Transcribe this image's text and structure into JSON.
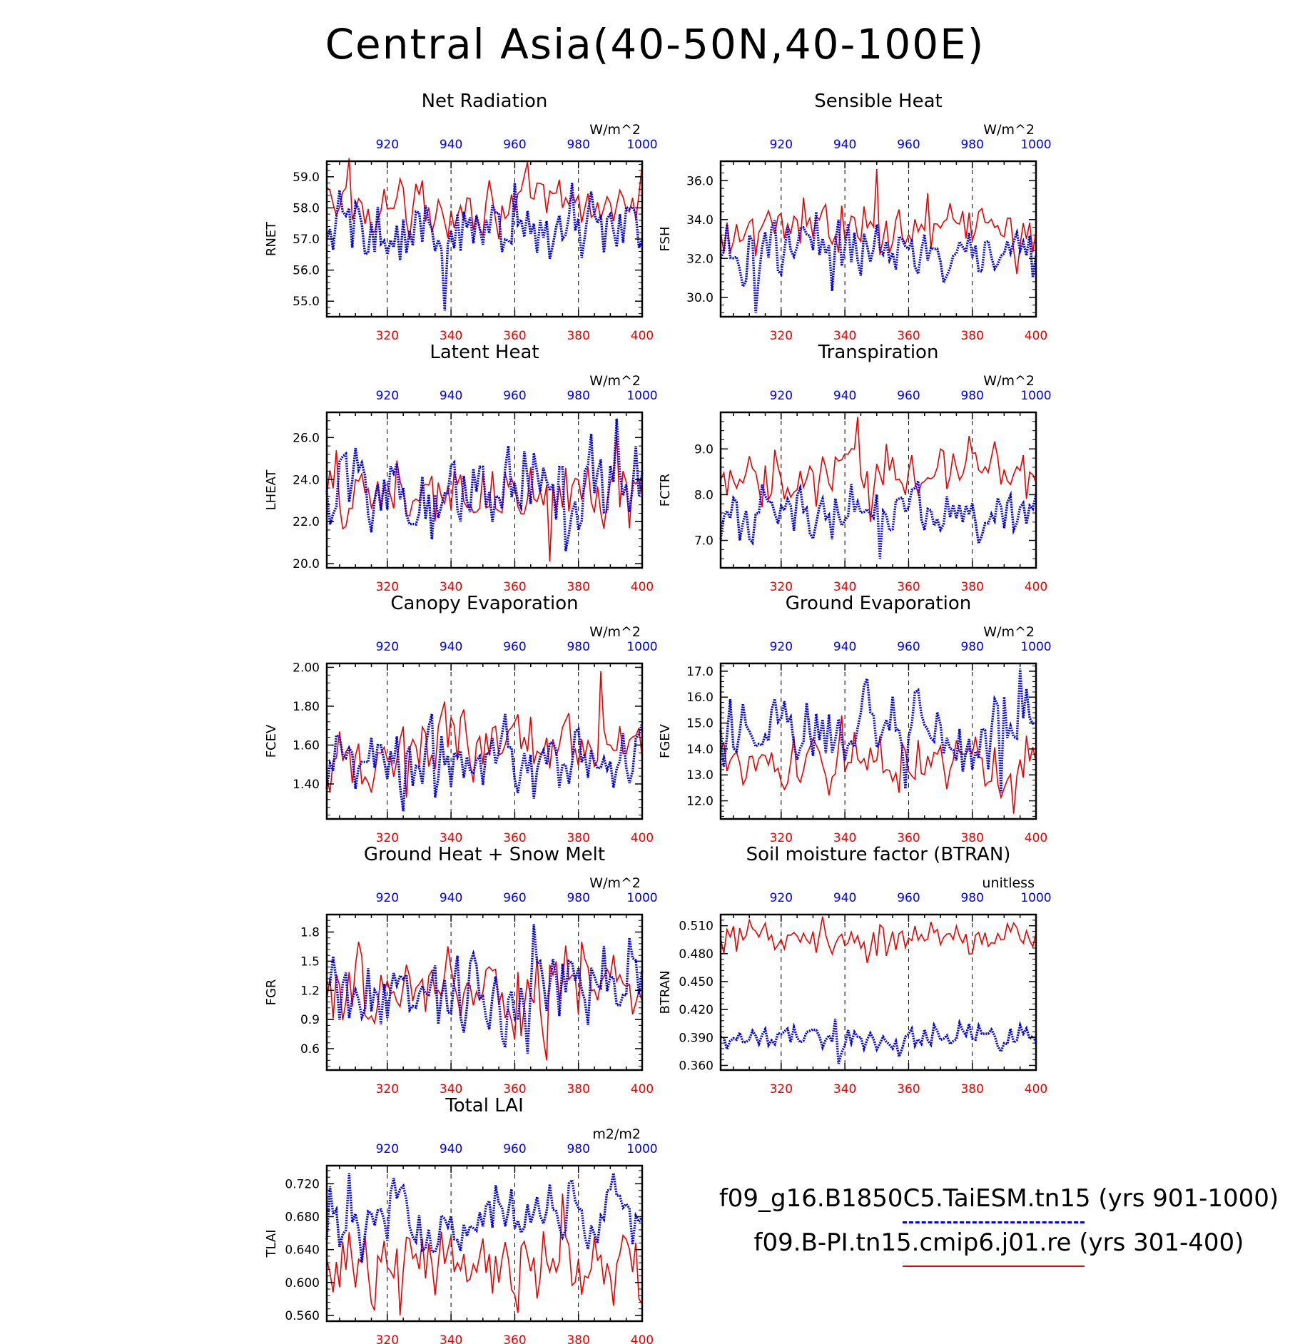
{
  "title": "Central Asia(40-50N,40-100E)",
  "colors": {
    "red_series": "#ee0000",
    "blue_series": "#0000ee",
    "axis": "#000000",
    "grid": "#000000"
  },
  "legend": {
    "entries": [
      {
        "label": "f09_g16.B1850C5.TaiESM.tn15 (yrs 901-1000)",
        "color": "#0000ee",
        "style": "dashed"
      },
      {
        "label": "f09.B-PI.tn15.cmip6.j01.re (yrs 301-400)",
        "color": "#ee0000",
        "style": "solid"
      }
    ]
  },
  "chart_data": [
    {
      "type": "line",
      "title": "Net Radiation",
      "ylabel": "RNET",
      "units": "W/m^2",
      "x_bottom": {
        "range": [
          301,
          400
        ],
        "ticks": [
          320,
          340,
          360,
          380,
          400
        ]
      },
      "x_top": {
        "range": [
          901,
          1000
        ],
        "ticks": [
          920,
          940,
          960,
          980,
          1000
        ]
      },
      "ylim": [
        54.5,
        59.5
      ],
      "yticks": [
        "55.0",
        "56.0",
        "57.0",
        "58.0",
        "59.0"
      ],
      "red": {
        "min": 57.0,
        "max": 59.6,
        "mean": 58.1,
        "sd": 0.55,
        "trend": 0.0
      },
      "blue": {
        "min": 54.7,
        "max": 58.8,
        "mean": 57.2,
        "sd": 0.75,
        "trend": 0.0
      }
    },
    {
      "type": "line",
      "title": "Sensible Heat",
      "ylabel": "FSH",
      "units": "W/m^2",
      "x_bottom": {
        "range": [
          301,
          400
        ],
        "ticks": [
          320,
          340,
          360,
          380,
          400
        ]
      },
      "x_top": {
        "range": [
          901,
          1000
        ],
        "ticks": [
          920,
          940,
          960,
          980,
          1000
        ]
      },
      "ylim": [
        29.0,
        37.0
      ],
      "yticks": [
        "30.0",
        "32.0",
        "34.0",
        "36.0"
      ],
      "red": {
        "min": 31.2,
        "max": 36.6,
        "mean": 33.6,
        "sd": 0.8,
        "trend": 0.0
      },
      "blue": {
        "min": 29.2,
        "max": 34.4,
        "mean": 32.2,
        "sd": 0.9,
        "trend": 0.0
      }
    },
    {
      "type": "line",
      "title": "Latent Heat",
      "ylabel": "LHEAT",
      "units": "W/m^2",
      "x_bottom": {
        "range": [
          301,
          400
        ],
        "ticks": [
          320,
          340,
          360,
          380,
          400
        ]
      },
      "x_top": {
        "range": [
          901,
          1000
        ],
        "ticks": [
          920,
          940,
          960,
          980,
          1000
        ]
      },
      "ylim": [
        19.8,
        27.2
      ],
      "yticks": [
        "20.0",
        "22.0",
        "24.0",
        "26.0"
      ],
      "red": {
        "min": 20.1,
        "max": 26.1,
        "mean": 23.3,
        "sd": 1.0,
        "trend": 0.0
      },
      "blue": {
        "min": 20.6,
        "max": 26.9,
        "mean": 23.6,
        "sd": 1.2,
        "trend": 0.0
      }
    },
    {
      "type": "line",
      "title": "Transpiration",
      "ylabel": "FCTR",
      "units": "W/m^2",
      "x_bottom": {
        "range": [
          301,
          400
        ],
        "ticks": [
          320,
          340,
          360,
          380,
          400
        ]
      },
      "x_top": {
        "range": [
          901,
          1000
        ],
        "ticks": [
          920,
          940,
          960,
          980,
          1000
        ]
      },
      "ylim": [
        6.4,
        9.8
      ],
      "yticks": [
        "7.0",
        "8.0",
        "9.0"
      ],
      "red": {
        "min": 7.4,
        "max": 9.7,
        "mean": 8.4,
        "sd": 0.4,
        "trend": 0.004
      },
      "blue": {
        "min": 6.6,
        "max": 8.3,
        "mean": 7.6,
        "sd": 0.35,
        "trend": 0.0
      }
    },
    {
      "type": "line",
      "title": "Canopy Evaporation",
      "ylabel": "FCEV",
      "units": "W/m^2",
      "x_bottom": {
        "range": [
          301,
          400
        ],
        "ticks": [
          320,
          340,
          360,
          380,
          400
        ]
      },
      "x_top": {
        "range": [
          901,
          1000
        ],
        "ticks": [
          920,
          940,
          960,
          980,
          1000
        ]
      },
      "ylim": [
        1.22,
        2.02
      ],
      "yticks": [
        "1.40",
        "1.60",
        "1.80",
        "2.00"
      ],
      "red": {
        "min": 1.33,
        "max": 1.98,
        "mean": 1.6,
        "sd": 0.11,
        "trend": 0.001
      },
      "blue": {
        "min": 1.26,
        "max": 1.76,
        "mean": 1.53,
        "sd": 0.1,
        "trend": 0.0
      }
    },
    {
      "type": "line",
      "title": "Ground Evaporation",
      "ylabel": "FGEV",
      "units": "W/m^2",
      "x_bottom": {
        "range": [
          301,
          400
        ],
        "ticks": [
          320,
          340,
          360,
          380,
          400
        ]
      },
      "x_top": {
        "range": [
          901,
          1000
        ],
        "ticks": [
          920,
          940,
          960,
          980,
          1000
        ]
      },
      "ylim": [
        11.3,
        17.3
      ],
      "yticks": [
        "12.0",
        "13.0",
        "14.0",
        "15.0",
        "16.0",
        "17.0"
      ],
      "red": {
        "min": 11.5,
        "max": 15.3,
        "mean": 13.3,
        "sd": 0.7,
        "trend": 0.0
      },
      "blue": {
        "min": 12.3,
        "max": 17.1,
        "mean": 14.6,
        "sd": 0.9,
        "trend": 0.0
      }
    },
    {
      "type": "line",
      "title": "Ground Heat + Snow Melt",
      "ylabel": "FGR",
      "units": "W/m^2",
      "x_bottom": {
        "range": [
          301,
          400
        ],
        "ticks": [
          320,
          340,
          360,
          380,
          400
        ]
      },
      "x_top": {
        "range": [
          901,
          1000
        ],
        "ticks": [
          920,
          940,
          960,
          980,
          1000
        ]
      },
      "ylim": [
        0.38,
        1.98
      ],
      "yticks": [
        "0.6",
        "0.9",
        "1.2",
        "1.5",
        "1.8"
      ],
      "red": {
        "min": 0.48,
        "max": 1.7,
        "mean": 1.2,
        "sd": 0.25,
        "trend": 0.0
      },
      "blue": {
        "min": 0.55,
        "max": 1.88,
        "mean": 1.22,
        "sd": 0.28,
        "trend": 0.0
      }
    },
    {
      "type": "line",
      "title": "Soil moisture factor (BTRAN)",
      "ylabel": "BTRAN",
      "units": "unitless",
      "x_bottom": {
        "range": [
          301,
          400
        ],
        "ticks": [
          320,
          340,
          360,
          380,
          400
        ]
      },
      "x_top": {
        "range": [
          901,
          1000
        ],
        "ticks": [
          920,
          940,
          960,
          980,
          1000
        ]
      },
      "ylim": [
        0.355,
        0.522
      ],
      "yticks": [
        "0.360",
        "0.390",
        "0.420",
        "0.450",
        "0.480",
        "0.510"
      ],
      "red": {
        "min": 0.47,
        "max": 0.52,
        "mean": 0.497,
        "sd": 0.011,
        "trend": 0.0
      },
      "blue": {
        "min": 0.362,
        "max": 0.41,
        "mean": 0.388,
        "sd": 0.009,
        "trend": 0.0
      }
    },
    {
      "type": "line",
      "title": "Total LAI",
      "ylabel": "TLAI",
      "units": "m2/m2",
      "x_bottom": {
        "range": [
          301,
          400
        ],
        "ticks": [
          320,
          340,
          360,
          380,
          400
        ]
      },
      "x_top": {
        "range": [
          901,
          1000
        ],
        "ticks": [
          920,
          940,
          960,
          980,
          1000
        ]
      },
      "ylim": [
        0.553,
        0.742
      ],
      "yticks": [
        "0.560",
        "0.600",
        "0.640",
        "0.680",
        "0.720"
      ],
      "red": {
        "min": 0.56,
        "max": 0.708,
        "mean": 0.622,
        "sd": 0.028,
        "trend": 0.0
      },
      "blue": {
        "min": 0.625,
        "max": 0.733,
        "mean": 0.683,
        "sd": 0.025,
        "trend": 0.0
      }
    }
  ]
}
